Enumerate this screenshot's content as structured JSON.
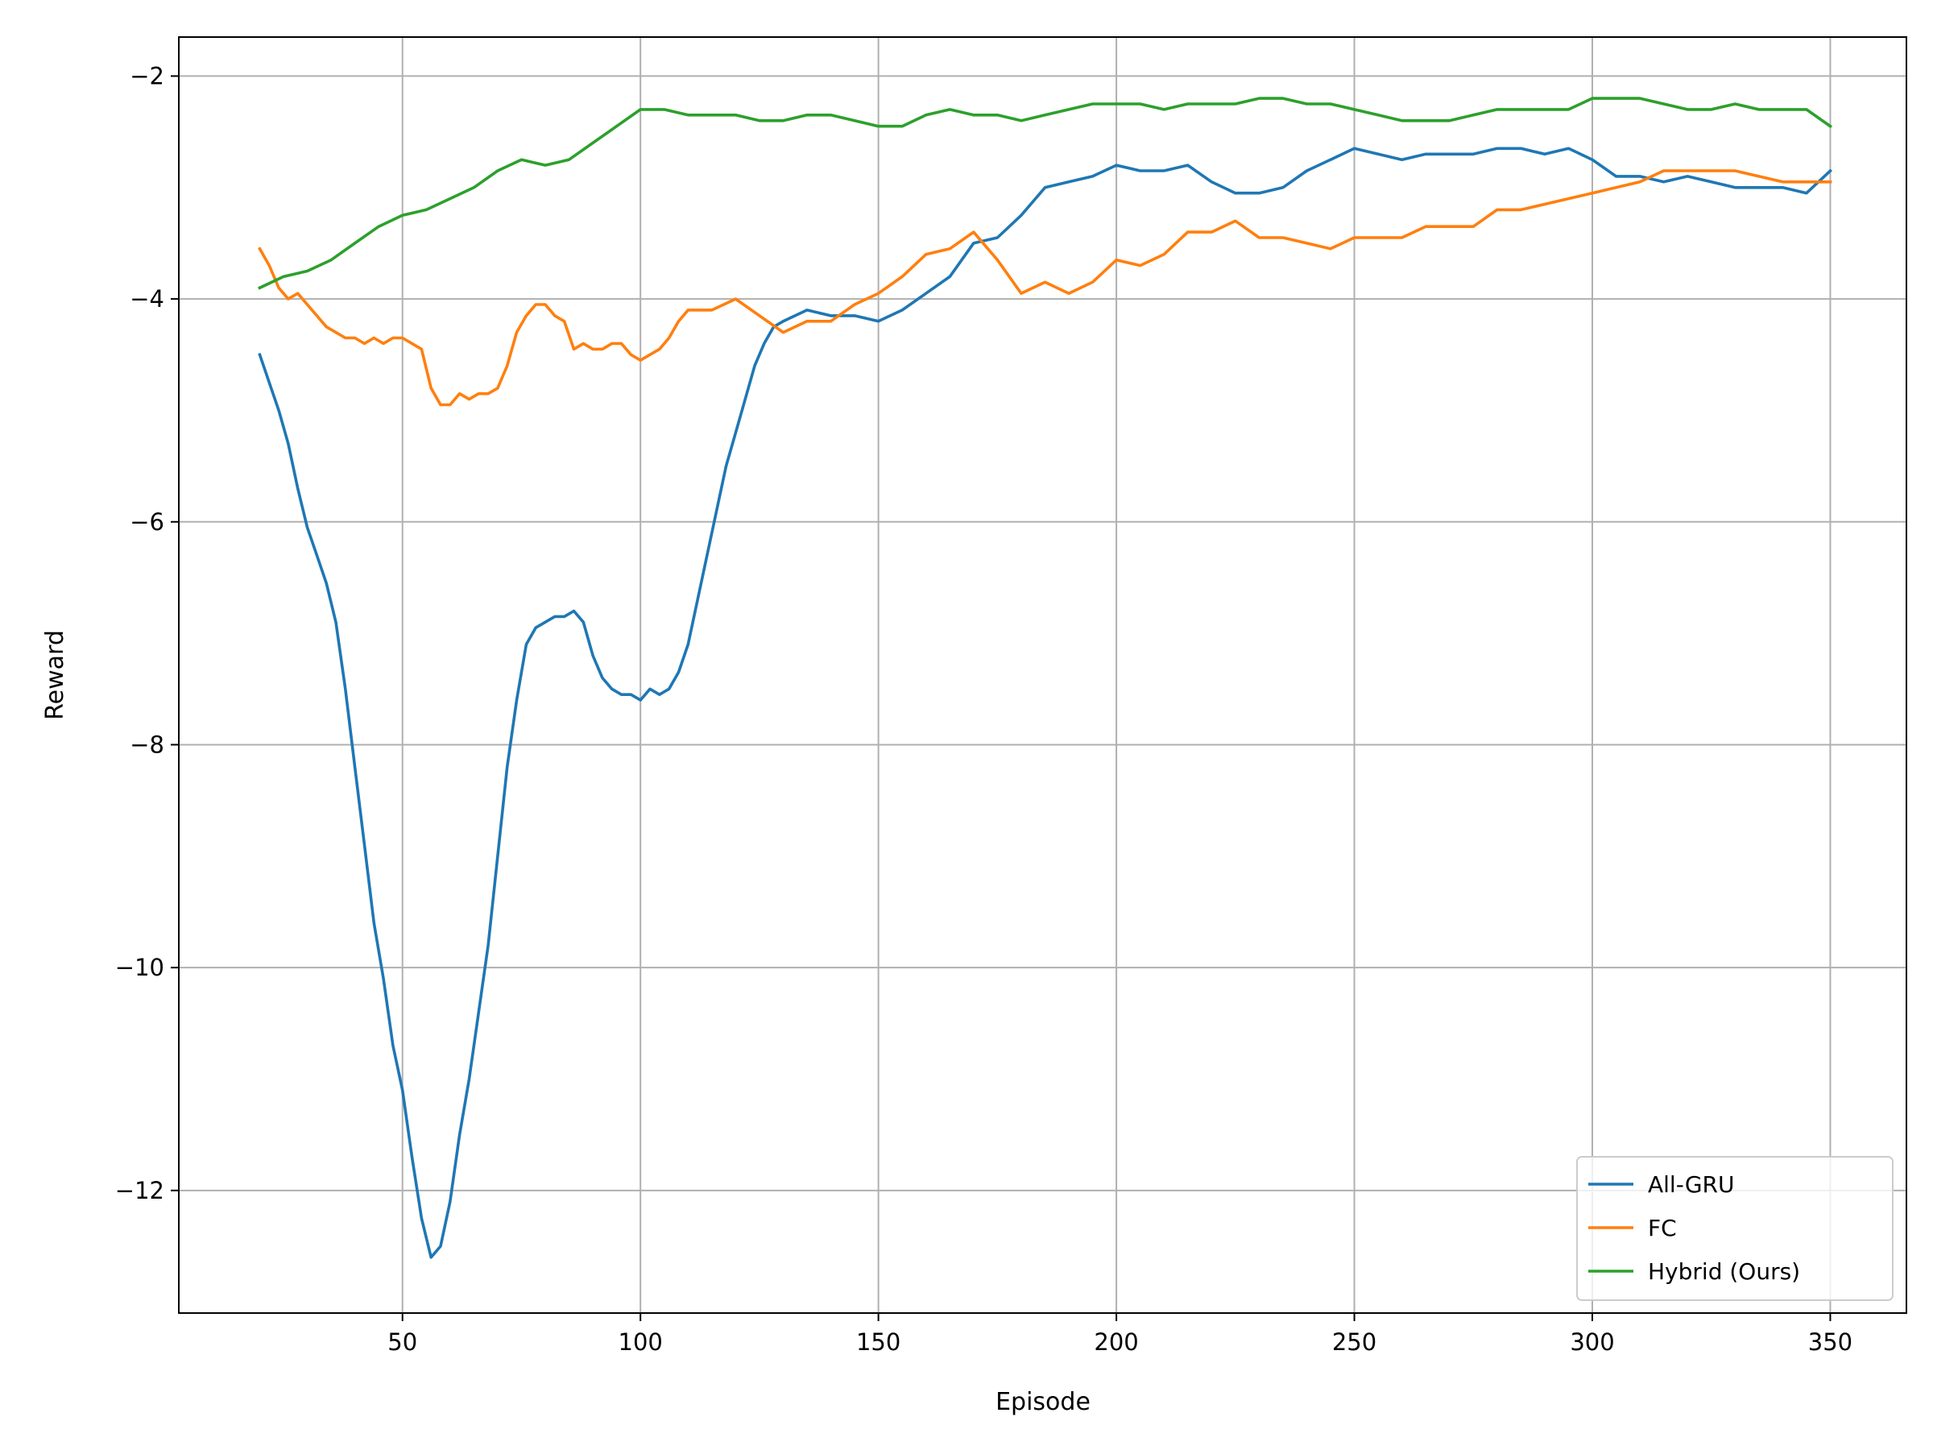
{
  "chart_data": {
    "type": "line",
    "title": "",
    "xlabel": "Episode",
    "ylabel": "Reward",
    "xlim": [
      3,
      366
    ],
    "ylim": [
      -13.1,
      -1.65
    ],
    "xticks": [
      50,
      100,
      150,
      200,
      250,
      300,
      350
    ],
    "xtick_labels": [
      "50",
      "100",
      "150",
      "200",
      "250",
      "300",
      "350"
    ],
    "yticks": [
      -12,
      -10,
      -8,
      -6,
      -4,
      -2
    ],
    "ytick_labels": [
      "−12",
      "−10",
      "−8",
      "−6",
      "−4",
      "−2"
    ],
    "grid": true,
    "legend_position": "lower-right",
    "series": [
      {
        "name": "All-GRU",
        "color": "#1f77b4",
        "x": [
          20,
          22,
          24,
          26,
          28,
          30,
          32,
          34,
          36,
          38,
          40,
          42,
          44,
          46,
          48,
          50,
          52,
          54,
          56,
          58,
          60,
          62,
          64,
          66,
          68,
          70,
          72,
          74,
          76,
          78,
          80,
          82,
          84,
          86,
          88,
          90,
          92,
          94,
          96,
          98,
          100,
          102,
          104,
          106,
          108,
          110,
          112,
          114,
          116,
          118,
          120,
          122,
          124,
          126,
          128,
          130,
          135,
          140,
          145,
          150,
          155,
          160,
          165,
          170,
          175,
          180,
          185,
          190,
          195,
          200,
          205,
          210,
          215,
          220,
          225,
          230,
          235,
          240,
          245,
          250,
          255,
          260,
          265,
          270,
          275,
          280,
          285,
          290,
          295,
          300,
          305,
          310,
          315,
          320,
          325,
          330,
          335,
          340,
          345,
          350
        ],
        "y": [
          -4.5,
          -4.75,
          -5.0,
          -5.3,
          -5.7,
          -6.05,
          -6.3,
          -6.55,
          -6.9,
          -7.5,
          -8.2,
          -8.9,
          -9.6,
          -10.1,
          -10.7,
          -11.1,
          -11.7,
          -12.25,
          -12.6,
          -12.5,
          -12.1,
          -11.5,
          -11.0,
          -10.4,
          -9.8,
          -9.0,
          -8.2,
          -7.6,
          -7.1,
          -6.95,
          -6.9,
          -6.85,
          -6.85,
          -6.8,
          -6.9,
          -7.2,
          -7.4,
          -7.5,
          -7.55,
          -7.55,
          -7.6,
          -7.5,
          -7.55,
          -7.5,
          -7.35,
          -7.1,
          -6.7,
          -6.3,
          -5.9,
          -5.5,
          -5.2,
          -4.9,
          -4.6,
          -4.4,
          -4.25,
          -4.2,
          -4.1,
          -4.15,
          -4.15,
          -4.2,
          -4.1,
          -3.95,
          -3.8,
          -3.5,
          -3.45,
          -3.25,
          -3.0,
          -2.95,
          -2.9,
          -2.8,
          -2.85,
          -2.85,
          -2.8,
          -2.95,
          -3.05,
          -3.05,
          -3.0,
          -2.85,
          -2.75,
          -2.65,
          -2.7,
          -2.75,
          -2.7,
          -2.7,
          -2.7,
          -2.65,
          -2.65,
          -2.7,
          -2.65,
          -2.75,
          -2.9,
          -2.9,
          -2.95,
          -2.9,
          -2.95,
          -3.0,
          -3.0,
          -3.0,
          -3.05,
          -2.85
        ]
      },
      {
        "name": "FC",
        "color": "#ff7f0e",
        "x": [
          20,
          22,
          24,
          26,
          28,
          30,
          32,
          34,
          36,
          38,
          40,
          42,
          44,
          46,
          48,
          50,
          52,
          54,
          56,
          58,
          60,
          62,
          64,
          66,
          68,
          70,
          72,
          74,
          76,
          78,
          80,
          82,
          84,
          86,
          88,
          90,
          92,
          94,
          96,
          98,
          100,
          102,
          104,
          106,
          108,
          110,
          115,
          120,
          125,
          130,
          135,
          140,
          145,
          150,
          155,
          160,
          165,
          170,
          175,
          180,
          185,
          190,
          195,
          200,
          205,
          210,
          215,
          220,
          225,
          230,
          235,
          240,
          245,
          250,
          255,
          260,
          265,
          270,
          275,
          280,
          285,
          290,
          295,
          300,
          305,
          310,
          315,
          320,
          325,
          330,
          335,
          340,
          345,
          350
        ],
        "y": [
          -3.55,
          -3.7,
          -3.9,
          -4.0,
          -3.95,
          -4.05,
          -4.15,
          -4.25,
          -4.3,
          -4.35,
          -4.35,
          -4.4,
          -4.35,
          -4.4,
          -4.35,
          -4.35,
          -4.4,
          -4.45,
          -4.8,
          -4.95,
          -4.95,
          -4.85,
          -4.9,
          -4.85,
          -4.85,
          -4.8,
          -4.6,
          -4.3,
          -4.15,
          -4.05,
          -4.05,
          -4.15,
          -4.2,
          -4.45,
          -4.4,
          -4.45,
          -4.45,
          -4.4,
          -4.4,
          -4.5,
          -4.55,
          -4.5,
          -4.45,
          -4.35,
          -4.2,
          -4.1,
          -4.1,
          -4.0,
          -4.15,
          -4.3,
          -4.2,
          -4.2,
          -4.05,
          -3.95,
          -3.8,
          -3.6,
          -3.55,
          -3.4,
          -3.65,
          -3.95,
          -3.85,
          -3.95,
          -3.85,
          -3.65,
          -3.7,
          -3.6,
          -3.4,
          -3.4,
          -3.3,
          -3.45,
          -3.45,
          -3.5,
          -3.55,
          -3.45,
          -3.45,
          -3.45,
          -3.35,
          -3.35,
          -3.35,
          -3.2,
          -3.2,
          -3.15,
          -3.1,
          -3.05,
          -3.0,
          -2.95,
          -2.85,
          -2.85,
          -2.85,
          -2.85,
          -2.9,
          -2.95,
          -2.95,
          -2.95
        ]
      },
      {
        "name": "Hybrid (Ours)",
        "color": "#2ca02c",
        "x": [
          20,
          25,
          30,
          35,
          40,
          45,
          50,
          55,
          60,
          65,
          70,
          75,
          80,
          85,
          90,
          95,
          100,
          105,
          110,
          115,
          120,
          125,
          130,
          135,
          140,
          145,
          150,
          155,
          160,
          165,
          170,
          175,
          180,
          185,
          190,
          195,
          200,
          205,
          210,
          215,
          220,
          225,
          230,
          235,
          240,
          245,
          250,
          255,
          260,
          265,
          270,
          275,
          280,
          285,
          290,
          295,
          300,
          305,
          310,
          315,
          320,
          325,
          330,
          335,
          340,
          345,
          350
        ],
        "y": [
          -3.9,
          -3.8,
          -3.75,
          -3.65,
          -3.5,
          -3.35,
          -3.25,
          -3.2,
          -3.1,
          -3.0,
          -2.85,
          -2.75,
          -2.8,
          -2.75,
          -2.6,
          -2.45,
          -2.3,
          -2.3,
          -2.35,
          -2.35,
          -2.35,
          -2.4,
          -2.4,
          -2.35,
          -2.35,
          -2.4,
          -2.45,
          -2.45,
          -2.35,
          -2.3,
          -2.35,
          -2.35,
          -2.4,
          -2.35,
          -2.3,
          -2.25,
          -2.25,
          -2.25,
          -2.3,
          -2.25,
          -2.25,
          -2.25,
          -2.2,
          -2.2,
          -2.25,
          -2.25,
          -2.3,
          -2.35,
          -2.4,
          -2.4,
          -2.4,
          -2.35,
          -2.3,
          -2.3,
          -2.3,
          -2.3,
          -2.2,
          -2.2,
          -2.2,
          -2.25,
          -2.3,
          -2.3,
          -2.25,
          -2.3,
          -2.3,
          -2.3,
          -2.45
        ]
      }
    ]
  }
}
